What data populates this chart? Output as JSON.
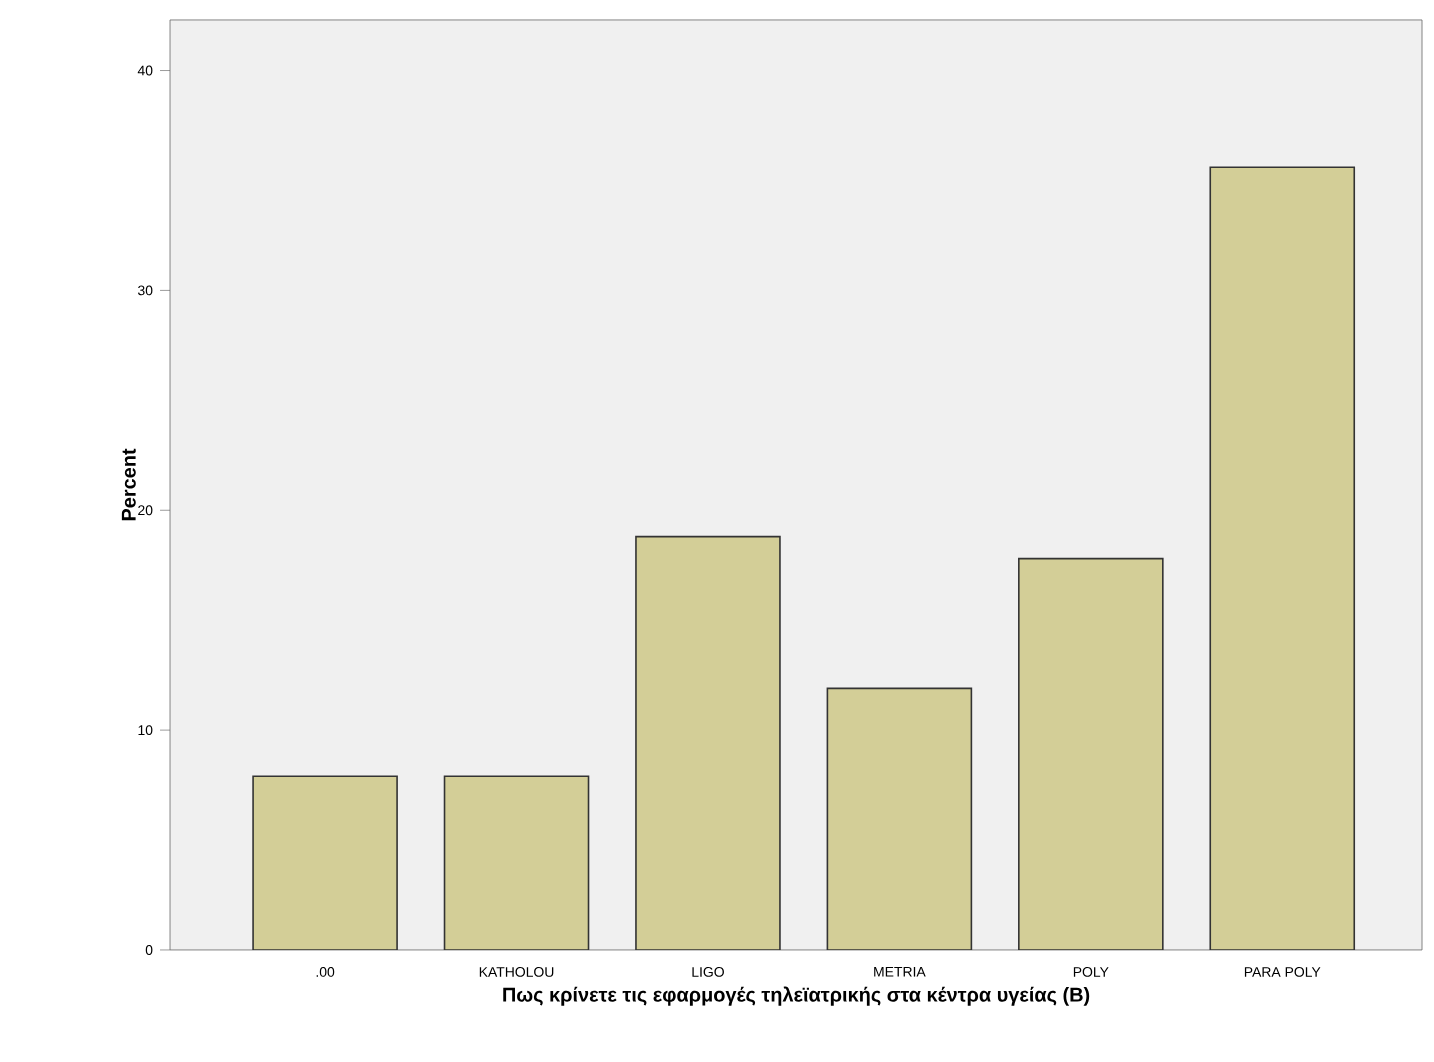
{
  "chart_data": {
    "type": "bar",
    "xlabel": "Πως κρίνετε τις εφαρμογές τηλεϊατρικής στα κέντρα υγείας (Β)",
    "ylabel": "Percent",
    "categories": [
      ".00",
      "KATHOLOU",
      "LIGO",
      "METRIA",
      "POLY",
      "PARA POLY"
    ],
    "values": [
      7.9,
      7.9,
      18.8,
      11.9,
      17.8,
      35.6
    ],
    "color": "#d3ce97",
    "ylim": [
      0,
      42.3
    ],
    "yticks": [
      0,
      10,
      20,
      30,
      40
    ],
    "grid": false
  }
}
